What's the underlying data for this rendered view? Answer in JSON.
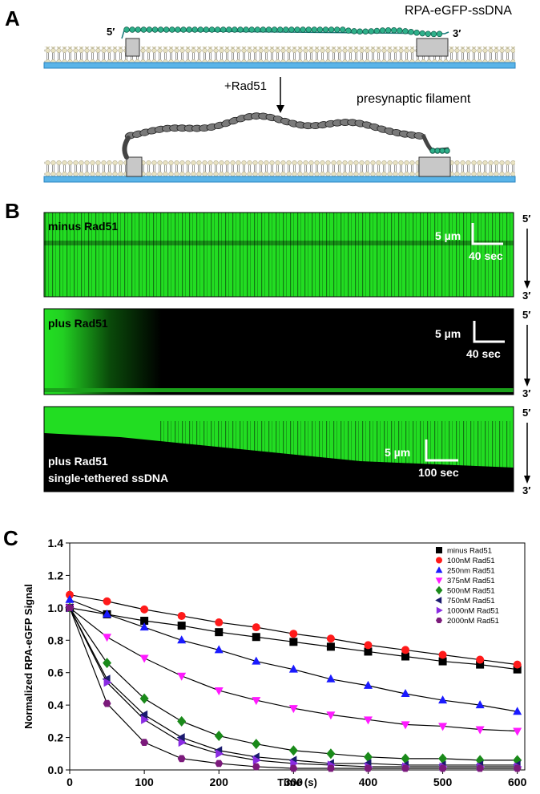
{
  "panel_a": {
    "label": "A",
    "construct": "RPA-eGFP-ssDNA",
    "five_prime": "5′",
    "three_prime": "3′",
    "step": "+Rad51",
    "product": "presynaptic filament"
  },
  "panel_b": {
    "label": "B",
    "kymographs": [
      {
        "title": "minus Rad51",
        "scale_y": "5 µm",
        "scale_x": "40 sec",
        "top_end": "5′",
        "bottom_end": "3′"
      },
      {
        "title": "plus Rad51",
        "scale_y": "5 µm",
        "scale_x": "40 sec",
        "top_end": "5′",
        "bottom_end": "3′"
      },
      {
        "title": "plus Rad51",
        "subtitle": "single-tethered ssDNA",
        "scale_y": "5 µm",
        "scale_x": "100 sec",
        "top_end": "5′",
        "bottom_end": "3′"
      }
    ]
  },
  "chart_data": {
    "type": "scatter",
    "panel_label": "C",
    "xlabel": "Time (s)",
    "ylabel": "Normalized RPA-eGFP Signal",
    "x": [
      0,
      50,
      100,
      150,
      200,
      250,
      300,
      350,
      400,
      450,
      500,
      550,
      600
    ],
    "xlim": [
      0,
      610
    ],
    "xticks": [
      0,
      100,
      200,
      300,
      400,
      500,
      600
    ],
    "ylim": [
      0,
      1.4
    ],
    "yticks": [
      {
        "value": 0,
        "label": "0.0"
      },
      0.2,
      0.4,
      0.6,
      0.8,
      {
        "value": 1,
        "label": "1.0"
      },
      1.2,
      1.4
    ],
    "legend": "top-right",
    "series": [
      {
        "name": "minus Rad51",
        "color": "#000000",
        "marker": "square",
        "values": [
          1.0,
          0.96,
          0.92,
          0.89,
          0.85,
          0.82,
          0.79,
          0.76,
          0.73,
          0.7,
          0.67,
          0.65,
          0.62
        ]
      },
      {
        "name": "100nM Rad51",
        "color": "#ff1a1a",
        "marker": "circle",
        "values": [
          1.08,
          1.04,
          0.99,
          0.95,
          0.91,
          0.88,
          0.84,
          0.81,
          0.77,
          0.74,
          0.71,
          0.68,
          0.65
        ]
      },
      {
        "name": "250nm Rad51",
        "color": "#1a1aff",
        "marker": "triangle-up",
        "values": [
          1.05,
          0.96,
          0.88,
          0.8,
          0.74,
          0.67,
          0.62,
          0.56,
          0.52,
          0.47,
          0.43,
          0.4,
          0.36
        ]
      },
      {
        "name": "375nM Rad51",
        "color": "#ff1aff",
        "marker": "triangle-down",
        "values": [
          1.0,
          0.82,
          0.69,
          0.58,
          0.49,
          0.43,
          0.38,
          0.34,
          0.31,
          0.28,
          0.27,
          0.25,
          0.24
        ]
      },
      {
        "name": "500nM Rad51",
        "color": "#1a8a1a",
        "marker": "diamond",
        "values": [
          1.0,
          0.66,
          0.44,
          0.3,
          0.21,
          0.16,
          0.12,
          0.1,
          0.08,
          0.07,
          0.07,
          0.06,
          0.06
        ]
      },
      {
        "name": "750nM Rad51",
        "color": "#1a1a6e",
        "marker": "triangle-left",
        "values": [
          1.0,
          0.56,
          0.34,
          0.2,
          0.12,
          0.08,
          0.06,
          0.04,
          0.04,
          0.03,
          0.03,
          0.03,
          0.03
        ]
      },
      {
        "name": "1000nM Rad51",
        "color": "#8a2be2",
        "marker": "triangle-right",
        "values": [
          1.0,
          0.54,
          0.31,
          0.17,
          0.1,
          0.06,
          0.04,
          0.03,
          0.02,
          0.02,
          0.02,
          0.02,
          0.02
        ]
      },
      {
        "name": "2000nM Rad51",
        "color": "#7b1a7b",
        "marker": "hexagon",
        "values": [
          1.0,
          0.41,
          0.17,
          0.07,
          0.04,
          0.02,
          0.01,
          0.01,
          0.01,
          0.01,
          0.01,
          0.01,
          0.01
        ]
      }
    ]
  }
}
